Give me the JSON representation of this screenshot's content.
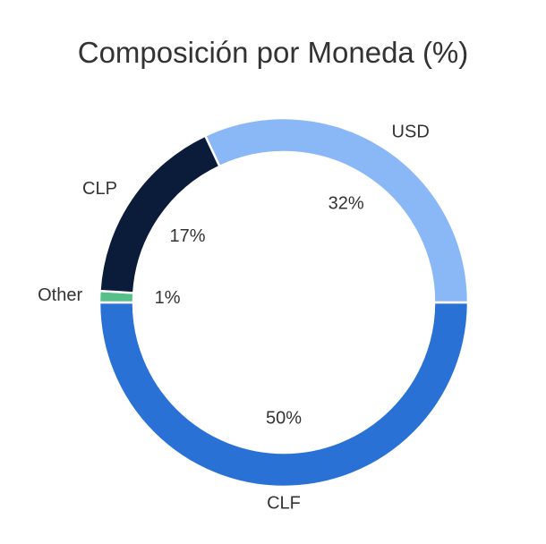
{
  "chart_data": {
    "type": "pie",
    "title": "Composición por Moneda (%)",
    "donut": true,
    "categories": [
      "USD",
      "CLF",
      "Other",
      "CLP"
    ],
    "values": [
      32,
      50,
      1,
      17
    ],
    "value_labels": [
      "32%",
      "50%",
      "1%",
      "17%"
    ],
    "colors": [
      "#8ab8f7",
      "#2a71d6",
      "#57c08a",
      "#0b1b3a"
    ],
    "start_angle_deg": 0,
    "direction": "clockwise-from-right"
  }
}
